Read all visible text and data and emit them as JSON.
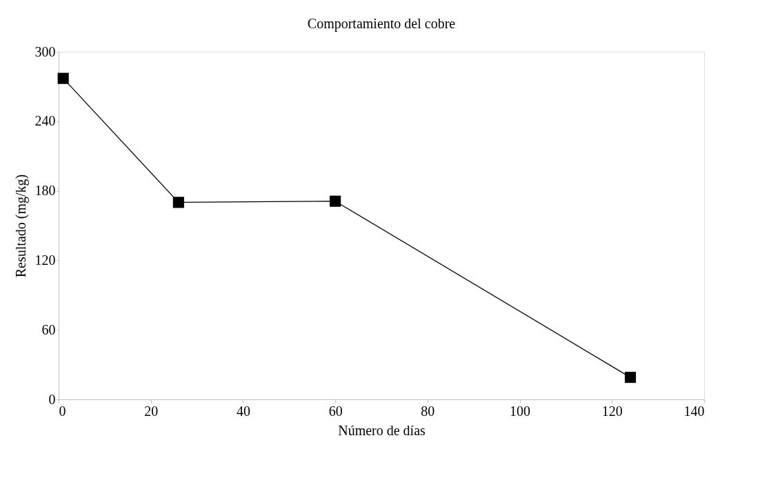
{
  "chart_data": {
    "type": "line",
    "title": "Comportamiento del cobre",
    "xlabel": "Número de días",
    "ylabel": "Resultado (mg/kg)",
    "x": [
      1,
      26,
      60,
      124
    ],
    "series": [
      {
        "color": "#000000",
        "values": [
          277,
          170,
          171,
          19
        ]
      }
    ],
    "xlim": [
      0,
      140
    ],
    "xticks": [
      0,
      20,
      40,
      60,
      80,
      100,
      120,
      140
    ],
    "ylim": [
      0,
      300
    ],
    "yticks": [
      0,
      60,
      120,
      180,
      240,
      300
    ],
    "grid": false,
    "marker": "square",
    "line_style": "solid"
  }
}
